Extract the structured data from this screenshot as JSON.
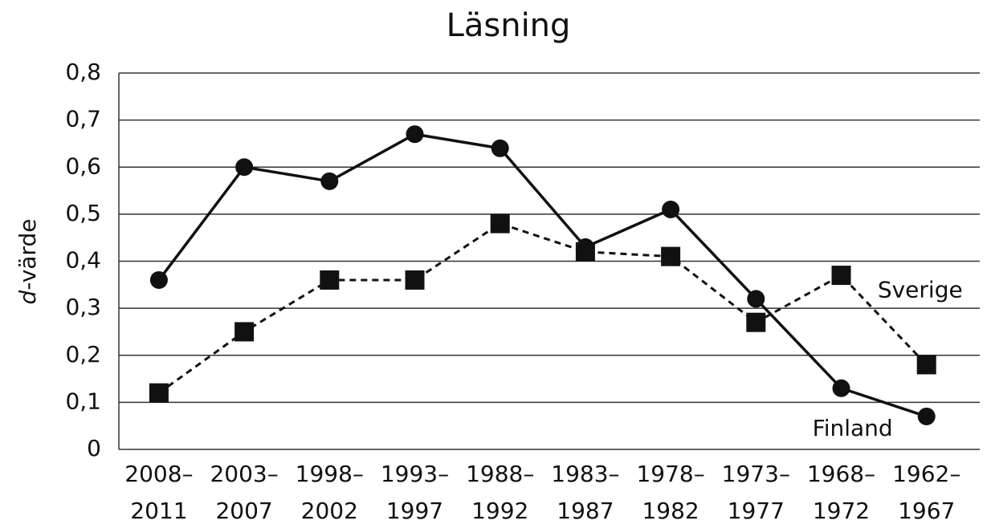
{
  "chart_data": {
    "type": "line",
    "title": "Läsning",
    "y_label": {
      "italic": "d",
      "rest": "-värde"
    },
    "categories": [
      "2008–2011",
      "2003–2007",
      "1998–2002",
      "1993–1997",
      "1988–1992",
      "1983–1987",
      "1978–1982",
      "1973–1977",
      "1968–1972",
      "1962–1967"
    ],
    "series": [
      {
        "name": "Finland",
        "color": "#111111",
        "marker": "circle",
        "dashed": false,
        "values": [
          0.36,
          0.6,
          0.57,
          0.67,
          0.64,
          0.43,
          0.51,
          0.32,
          0.13,
          0.07
        ]
      },
      {
        "name": "Sverige",
        "color": "#111111",
        "marker": "square",
        "dashed": true,
        "values": [
          0.12,
          0.25,
          0.36,
          0.36,
          0.48,
          0.42,
          0.41,
          0.27,
          0.37,
          0.18
        ]
      }
    ],
    "ylim": [
      0,
      0.8
    ],
    "yticks": [
      0,
      {
        "value": 0.1,
        "label": "0,1"
      },
      {
        "value": 0.2,
        "label": "0,2"
      },
      {
        "value": 0.3,
        "label": "0,3"
      },
      {
        "value": 0.4,
        "label": "0,4"
      },
      {
        "value": 0.5,
        "label": "0,5"
      },
      {
        "value": 0.6,
        "label": "0,6"
      },
      {
        "value": 0.7,
        "label": "0,7"
      },
      {
        "value": 0.8,
        "label": "0,8"
      }
    ],
    "grid": true
  }
}
